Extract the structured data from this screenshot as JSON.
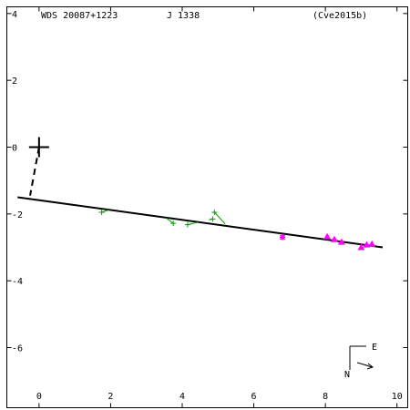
{
  "chart_data": {
    "type": "scatter",
    "title_left": "WDS 20087+1223",
    "title_mid": "J  1338",
    "title_right": "(Cve2015b)",
    "xlim": [
      -0.9,
      10.3
    ],
    "ylim": [
      -7.8,
      4.2
    ],
    "x_ticks": [
      0,
      2,
      4,
      6,
      8,
      10
    ],
    "y_ticks": [
      4,
      2,
      0,
      -2,
      -4,
      -6
    ],
    "x_tick_labels": [
      "0",
      "2",
      "4",
      "6",
      "8",
      "10"
    ],
    "y_tick_labels": [
      "4",
      "2",
      "0",
      "-2",
      "-4",
      "-6"
    ],
    "primary": {
      "x": 0,
      "y": 0
    },
    "periastron_segment": [
      [
        0,
        0
      ],
      [
        -0.25,
        -1.45
      ]
    ],
    "fit_line": [
      [
        -0.6,
        -1.5
      ],
      [
        9.6,
        -3.0
      ]
    ],
    "green_points": [
      {
        "x": 1.75,
        "y": -1.95,
        "fx": 1.95,
        "fy": -1.88
      },
      {
        "x": 3.75,
        "y": -2.28,
        "fx": 3.55,
        "fy": -2.12
      },
      {
        "x": 4.15,
        "y": -2.32,
        "fx": 4.45,
        "fy": -2.25
      },
      {
        "x": 4.85,
        "y": -2.15,
        "fx": 4.75,
        "fy": -2.18
      },
      {
        "x": 4.9,
        "y": -1.95,
        "fx": 5.2,
        "fy": -2.3
      }
    ],
    "magenta_star": [
      {
        "x": 6.8,
        "y": -2.7
      }
    ],
    "magenta_triangles": [
      {
        "x": 8.05,
        "y": -2.68
      },
      {
        "x": 8.25,
        "y": -2.76
      },
      {
        "x": 8.45,
        "y": -2.84
      },
      {
        "x": 9.0,
        "y": -3.0
      },
      {
        "x": 9.15,
        "y": -2.92
      },
      {
        "x": 9.3,
        "y": -2.9
      }
    ],
    "compass": {
      "east_label": "E",
      "north_label": "N"
    },
    "colors": {
      "green": "#00a000",
      "magenta": "#ff00ff",
      "black": "#000000"
    }
  }
}
